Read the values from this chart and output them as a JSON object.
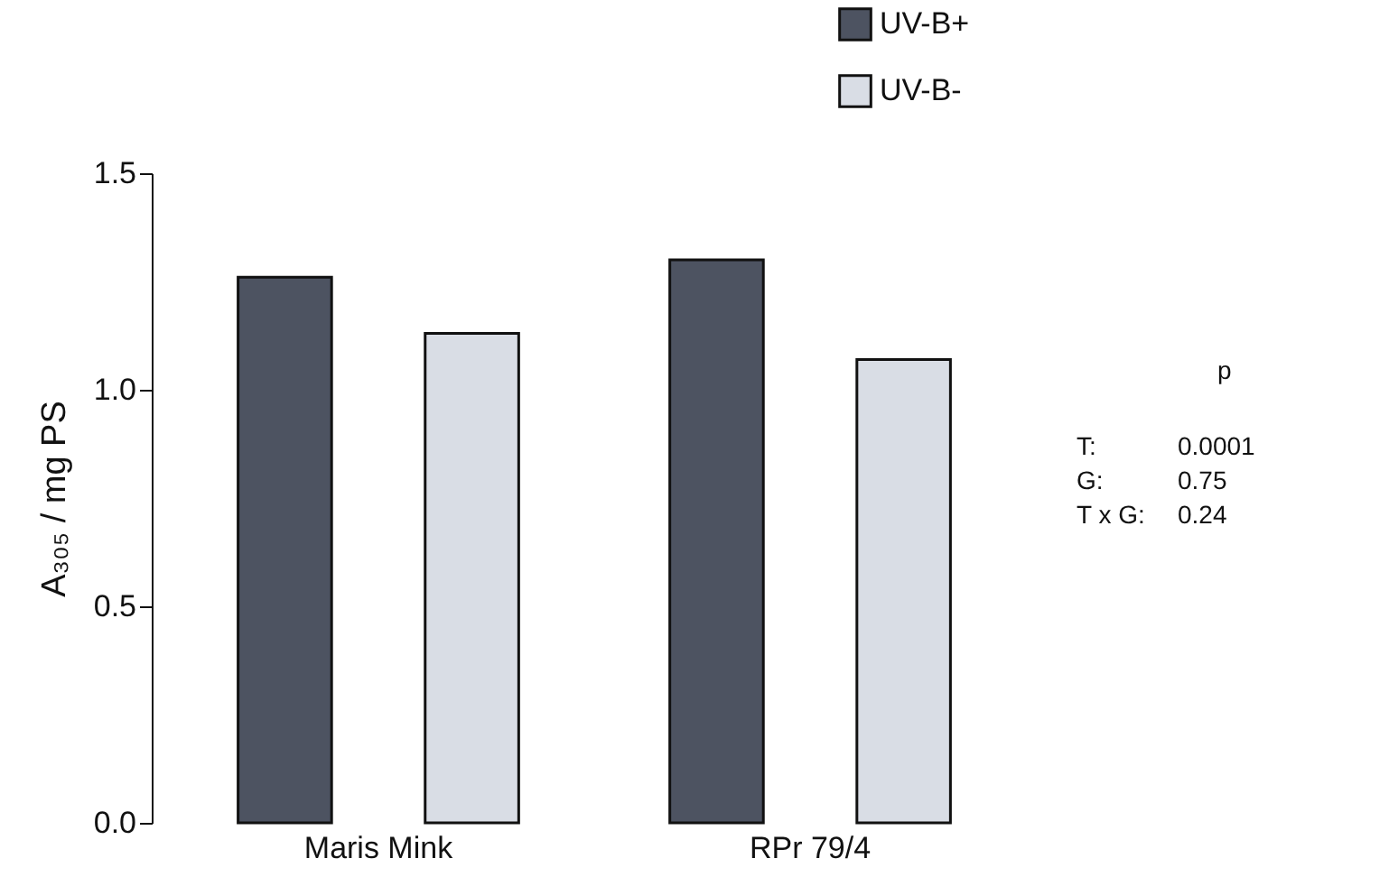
{
  "chart_data": {
    "type": "bar",
    "ylabel": "A₃₀₅ / mg PS",
    "categories": [
      "Maris Mink",
      "RPr 79/4"
    ],
    "series": [
      {
        "name": "UV-B+",
        "color": "#4d5361",
        "values": [
          1.26,
          1.3
        ]
      },
      {
        "name": "UV-B-",
        "color": "#d9dde5",
        "values": [
          1.13,
          1.07
        ]
      }
    ],
    "ylim": [
      0,
      1.5
    ],
    "yticks": [
      {
        "value": 0,
        "label": "0.0"
      },
      {
        "value": 0.5,
        "label": "0.5"
      },
      {
        "value": 1.0,
        "label": "1.0"
      },
      {
        "value": 1.5,
        "label": "1.5"
      }
    ],
    "grid": false,
    "legend": "top right",
    "annotations": [
      "p",
      "T:",
      "0.0001",
      "G:",
      "0.75",
      "T x G:",
      "0.24"
    ]
  }
}
